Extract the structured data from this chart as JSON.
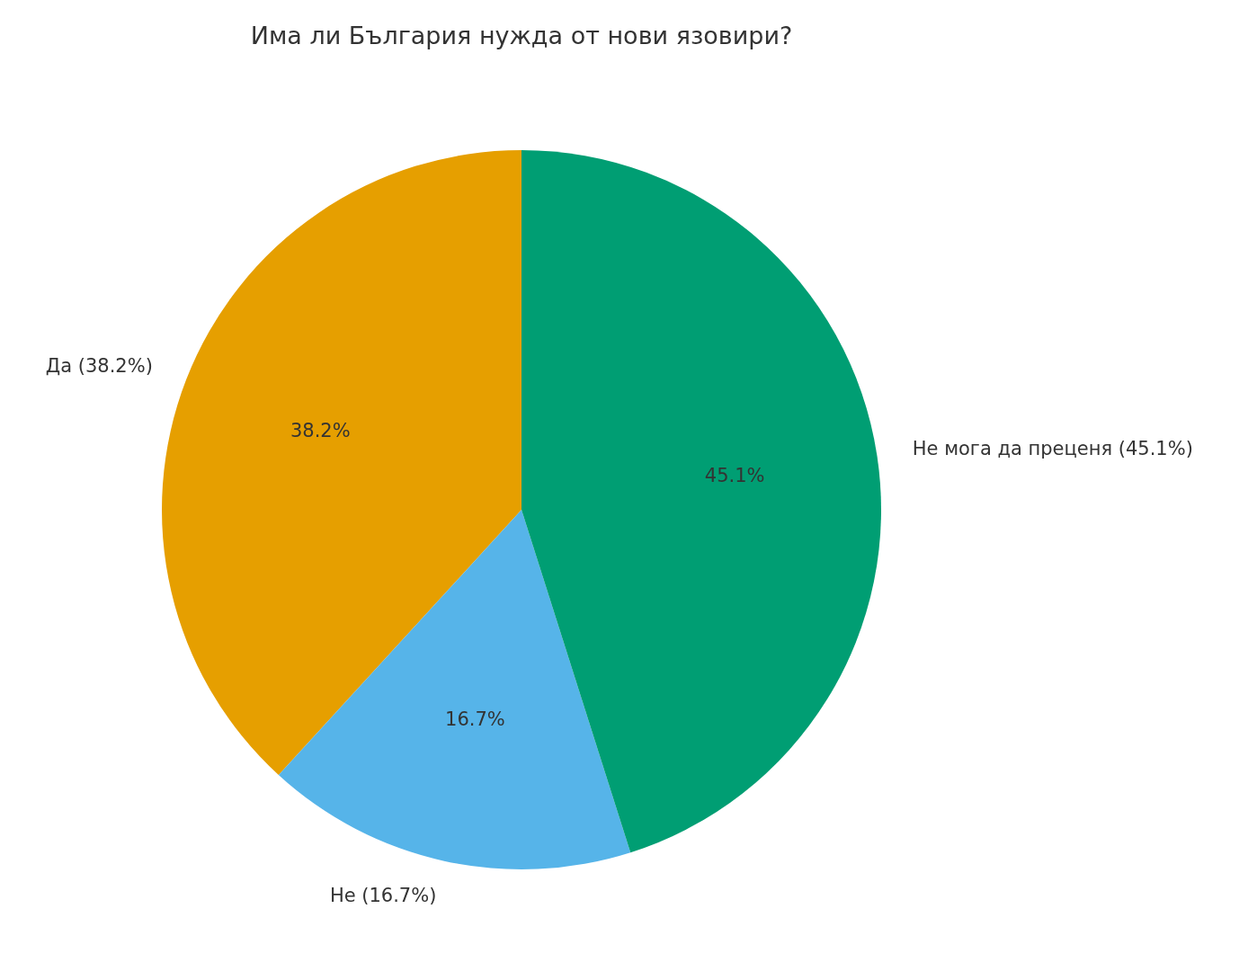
{
  "chart_data": {
    "type": "pie",
    "title": "Има ли България нужда от нови язовири?",
    "categories": [
      "Да (38.2%)",
      "Не (16.7%)",
      "Не мога да преценя (45.1%)"
    ],
    "values": [
      38.2,
      16.7,
      45.1
    ],
    "colors": [
      "#e69f00",
      "#56b4e9",
      "#009e73"
    ],
    "value_labels": [
      "38.2%",
      "16.7%",
      "45.1%"
    ]
  }
}
